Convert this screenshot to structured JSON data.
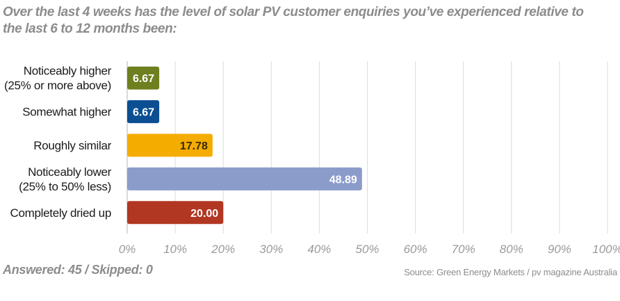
{
  "chart_data": {
    "type": "bar",
    "orientation": "horizontal",
    "title": "Over the last 4 weeks has the level of solar PV customer enquiries you’ve experienced relative to the last 6 to 12 months been:",
    "categories": [
      [
        "Noticeably higher",
        "(25% or more above)"
      ],
      [
        "Somewhat higher"
      ],
      [
        "Roughly similar"
      ],
      [
        "Noticeably lower",
        "(25% to 50% less)"
      ],
      [
        "Completely dried up"
      ]
    ],
    "values": [
      6.67,
      6.67,
      17.78,
      48.89,
      20.0
    ],
    "value_labels": [
      "6.67",
      "6.67",
      "17.78",
      "48.89",
      "20.00"
    ],
    "colors": [
      "#6e7f1f",
      "#0b4e92",
      "#f5ac00",
      "#8b9ccb",
      "#b13722"
    ],
    "value_label_colors": [
      "#ffffff",
      "#ffffff",
      "#3a2a00",
      "#ffffff",
      "#ffffff"
    ],
    "xlim": [
      0,
      100
    ],
    "xticks": [
      0,
      10,
      20,
      30,
      40,
      50,
      60,
      70,
      80,
      90,
      100
    ],
    "xtick_labels": [
      "0%",
      "10%",
      "20%",
      "30%",
      "40%",
      "50%",
      "60%",
      "70%",
      "80%",
      "90%",
      "100%"
    ],
    "grid": true,
    "legend": "none"
  },
  "footer": {
    "answered": "Answered: 45 / Skipped: 0",
    "source": "Source: Green Energy Markets / pv magazine Australia"
  },
  "colors": {
    "title_text": "#8c8c8c",
    "grid": "#dcdcdc",
    "axis": "#b5b5b5"
  }
}
